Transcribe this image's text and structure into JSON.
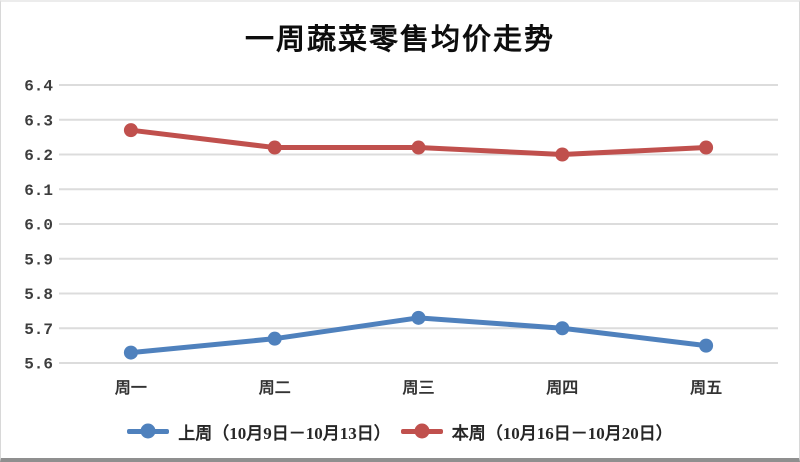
{
  "title": "一周蔬菜零售均价走势",
  "chart_data": {
    "type": "line",
    "categories": [
      "周一",
      "周二",
      "周三",
      "周四",
      "周五"
    ],
    "series": [
      {
        "name": "上周（10月9日－10月13日）",
        "color": "#4F81BD",
        "values": [
          5.63,
          5.67,
          5.73,
          5.7,
          5.65
        ]
      },
      {
        "name": "本周（10月16日－10月20日）",
        "color": "#C0504D",
        "values": [
          6.27,
          6.22,
          6.22,
          6.2,
          6.22
        ]
      }
    ],
    "ylim": [
      5.6,
      6.4
    ],
    "yticks": [
      "5.6",
      "5.7",
      "5.8",
      "5.9",
      "6.0",
      "6.1",
      "6.2",
      "6.3",
      "6.4"
    ],
    "grid": true,
    "legend_position": "bottom",
    "xlabel": "",
    "ylabel": ""
  },
  "colors": {
    "background": "#ffffff",
    "gridline": "#dcdcdc",
    "tick_text": "#3d3d3d",
    "title_text": "#0d0d0d"
  }
}
